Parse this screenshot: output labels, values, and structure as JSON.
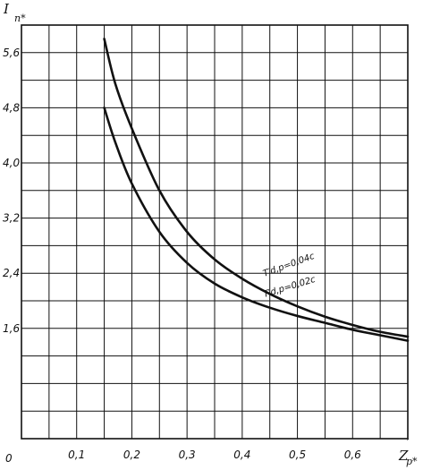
{
  "chart_data": {
    "type": "line",
    "ylabel": "I",
    "ylabel_sub": "п*",
    "xlabel": "Z",
    "xlabel_sub": "р*",
    "xlabel_prime": "′",
    "xlim": [
      0,
      0.7
    ],
    "ylim": [
      0,
      6.0
    ],
    "x_ticks": [
      {
        "value": 0.1,
        "label": "0,1"
      },
      {
        "value": 0.2,
        "label": "0,2"
      },
      {
        "value": 0.3,
        "label": "0,3"
      },
      {
        "value": 0.4,
        "label": "0,4"
      },
      {
        "value": 0.5,
        "label": "0,5"
      },
      {
        "value": 0.6,
        "label": "0,6"
      }
    ],
    "y_ticks": [
      {
        "value": 1.6,
        "label": "1,6"
      },
      {
        "value": 2.4,
        "label": "2,4"
      },
      {
        "value": 3.2,
        "label": "3,2"
      },
      {
        "value": 4.0,
        "label": "4,0"
      },
      {
        "value": 4.8,
        "label": "4,8"
      },
      {
        "value": 5.6,
        "label": "5,6"
      }
    ],
    "origin_label": "0",
    "grid": true,
    "series": [
      {
        "name": "T′d,р=0,04с",
        "points": [
          {
            "x": 0.15,
            "y": 5.8
          },
          {
            "x": 0.17,
            "y": 5.15
          },
          {
            "x": 0.2,
            "y": 4.5
          },
          {
            "x": 0.25,
            "y": 3.6
          },
          {
            "x": 0.3,
            "y": 3.0
          },
          {
            "x": 0.35,
            "y": 2.6
          },
          {
            "x": 0.4,
            "y": 2.32
          },
          {
            "x": 0.45,
            "y": 2.1
          },
          {
            "x": 0.5,
            "y": 1.92
          },
          {
            "x": 0.55,
            "y": 1.77
          },
          {
            "x": 0.6,
            "y": 1.65
          },
          {
            "x": 0.65,
            "y": 1.55
          },
          {
            "x": 0.7,
            "y": 1.48
          }
        ]
      },
      {
        "name": "T′d,р=0,02с",
        "points": [
          {
            "x": 0.15,
            "y": 4.8
          },
          {
            "x": 0.17,
            "y": 4.3
          },
          {
            "x": 0.2,
            "y": 3.7
          },
          {
            "x": 0.25,
            "y": 3.0
          },
          {
            "x": 0.3,
            "y": 2.55
          },
          {
            "x": 0.35,
            "y": 2.25
          },
          {
            "x": 0.4,
            "y": 2.05
          },
          {
            "x": 0.45,
            "y": 1.9
          },
          {
            "x": 0.5,
            "y": 1.78
          },
          {
            "x": 0.55,
            "y": 1.68
          },
          {
            "x": 0.6,
            "y": 1.58
          },
          {
            "x": 0.65,
            "y": 1.5
          },
          {
            "x": 0.7,
            "y": 1.42
          }
        ]
      }
    ]
  }
}
